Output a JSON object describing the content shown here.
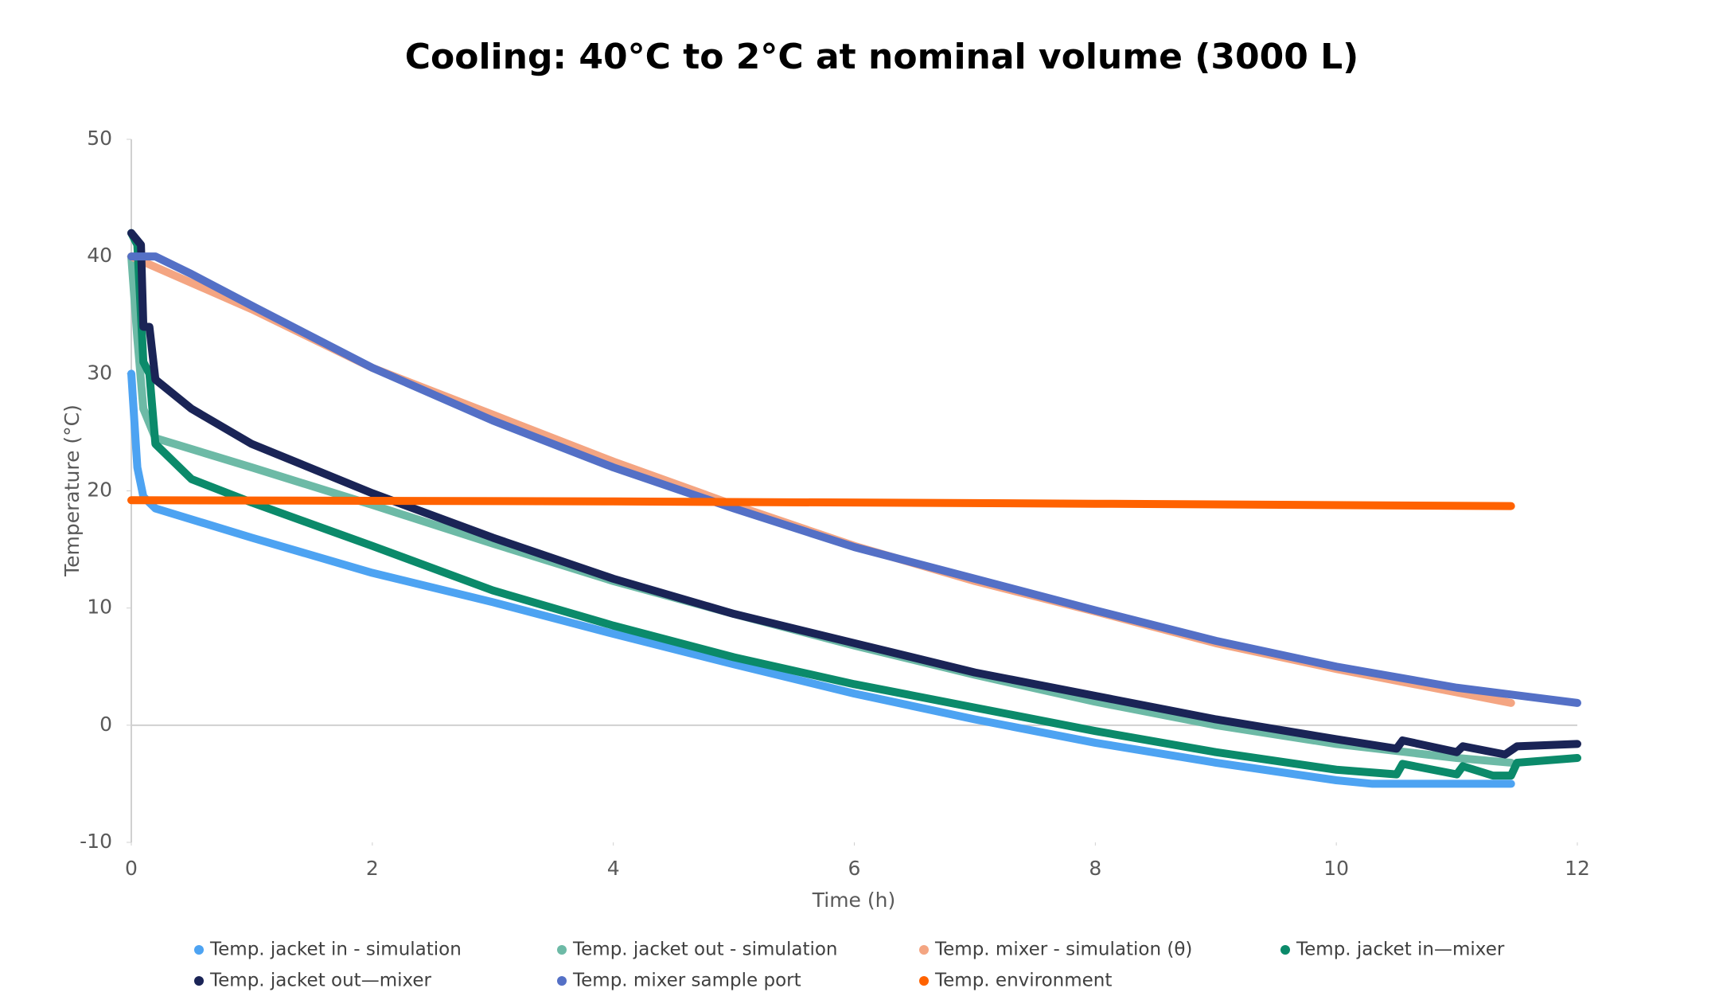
{
  "chart_data": {
    "type": "line",
    "title": "Cooling: 40°C to 2°C at nominal volume (3000 L)",
    "x_label": "Time (h)",
    "y_label": "Temperature (°C)",
    "xlim": [
      0,
      12
    ],
    "xticks": [
      0,
      2,
      4,
      6,
      8,
      10,
      12
    ],
    "ylim": [
      -10,
      50
    ],
    "yticks": [
      -10,
      0,
      10,
      20,
      30,
      40,
      50
    ],
    "series": [
      {
        "name": "Temp. jacket in  - simulation",
        "color": "#4da3f2",
        "x": [
          0,
          0.05,
          0.1,
          0.2,
          1,
          2,
          3,
          4,
          5,
          6,
          7,
          8,
          9,
          10,
          10.3,
          11,
          11.45
        ],
        "values": [
          30,
          22,
          19.5,
          18.5,
          16,
          13,
          10.5,
          7.8,
          5.2,
          2.7,
          0.5,
          -1.5,
          -3.2,
          -4.7,
          -5,
          -5,
          -5
        ]
      },
      {
        "name": "Temp. jacket out - simulation",
        "color": "#6dbaa6",
        "x": [
          0,
          0.05,
          0.1,
          0.2,
          1,
          2,
          3,
          4,
          5,
          6,
          7,
          8,
          9,
          10,
          11,
          11.45
        ],
        "values": [
          40,
          33,
          27,
          24.5,
          22,
          18.8,
          15.5,
          12.3,
          9.5,
          6.8,
          4.3,
          2,
          0,
          -1.6,
          -2.8,
          -3.2
        ]
      },
      {
        "name": "Temp. mixer - simulation (θ)",
        "color": "#f4a582",
        "x": [
          0,
          1,
          2,
          3,
          4,
          5,
          6,
          7,
          8,
          9,
          10,
          11,
          11.45
        ],
        "values": [
          40,
          35.5,
          30.5,
          26.5,
          22.5,
          18.8,
          15.3,
          12.3,
          9.7,
          7,
          4.8,
          2.8,
          1.9
        ]
      },
      {
        "name": "Temp. jacket in—mixer",
        "color": "#0b8a6a",
        "x": [
          0,
          0.05,
          0.1,
          0.15,
          0.2,
          0.5,
          1,
          2,
          3,
          4,
          5,
          6,
          7,
          8,
          9,
          10,
          10.5,
          10.55,
          11,
          11.05,
          11.3,
          11.45,
          11.5,
          12
        ],
        "values": [
          42,
          41,
          31,
          30,
          24,
          21,
          19,
          15.3,
          11.5,
          8.5,
          5.8,
          3.5,
          1.5,
          -0.5,
          -2.3,
          -3.8,
          -4.2,
          -3.3,
          -4.2,
          -3.5,
          -4.3,
          -4.3,
          -3.2,
          -2.8
        ]
      },
      {
        "name": "Temp. jacket out—mixer",
        "color": "#1a2456",
        "x": [
          0,
          0.08,
          0.1,
          0.15,
          0.2,
          0.5,
          1,
          2,
          3,
          4,
          5,
          6,
          7,
          8,
          9,
          10,
          10.5,
          10.55,
          11,
          11.05,
          11.4,
          11.5,
          12
        ],
        "values": [
          42,
          41,
          34,
          34,
          29.5,
          27,
          24,
          19.8,
          16,
          12.5,
          9.5,
          7,
          4.5,
          2.5,
          0.5,
          -1.2,
          -2,
          -1.3,
          -2.3,
          -1.8,
          -2.5,
          -1.8,
          -1.6
        ]
      },
      {
        "name": "Temp. mixer sample port",
        "color": "#5470c6",
        "x": [
          0,
          0.2,
          0.5,
          1,
          2,
          3,
          4,
          5,
          6,
          7,
          8,
          9,
          10,
          11,
          12
        ],
        "values": [
          40,
          40,
          38.5,
          35.8,
          30.5,
          26,
          22,
          18.5,
          15.2,
          12.5,
          9.8,
          7.2,
          5,
          3.2,
          1.9
        ]
      },
      {
        "name": "Temp. environment",
        "color": "#ff6200",
        "x": [
          0,
          4,
          8,
          11.45
        ],
        "values": [
          19.2,
          19.1,
          18.9,
          18.7
        ]
      }
    ]
  }
}
